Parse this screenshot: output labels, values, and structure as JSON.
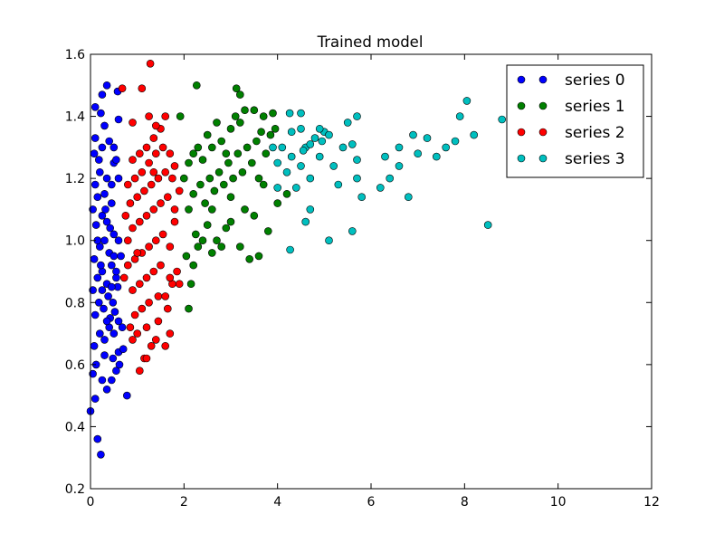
{
  "chart_data": {
    "type": "scatter",
    "title": "Trained model",
    "xlabel": "",
    "ylabel": "",
    "xlim": [
      0,
      12
    ],
    "ylim": [
      0.2,
      1.6
    ],
    "xticks": [
      "0",
      "2",
      "4",
      "6",
      "8",
      "10",
      "12"
    ],
    "yticks": [
      "0.2",
      "0.4",
      "0.6",
      "0.8",
      "1.0",
      "1.2",
      "1.4",
      "1.6"
    ],
    "grid": false,
    "legend_position": "top-right",
    "series": [
      {
        "name": "series 0",
        "color": "#0000ff",
        "points": [
          [
            0.0,
            0.45
          ],
          [
            0.1,
            0.49
          ],
          [
            0.15,
            0.36
          ],
          [
            0.22,
            0.31
          ],
          [
            0.05,
            0.57
          ],
          [
            0.12,
            0.6
          ],
          [
            0.25,
            0.55
          ],
          [
            0.35,
            0.52
          ],
          [
            0.45,
            0.55
          ],
          [
            0.55,
            0.58
          ],
          [
            0.6,
            0.64
          ],
          [
            0.7,
            0.65
          ],
          [
            0.78,
            0.5
          ],
          [
            0.08,
            0.66
          ],
          [
            0.2,
            0.7
          ],
          [
            0.3,
            0.68
          ],
          [
            0.4,
            0.72
          ],
          [
            0.5,
            0.7
          ],
          [
            0.6,
            0.74
          ],
          [
            0.1,
            0.76
          ],
          [
            0.18,
            0.8
          ],
          [
            0.28,
            0.78
          ],
          [
            0.38,
            0.82
          ],
          [
            0.48,
            0.8
          ],
          [
            0.58,
            0.85
          ],
          [
            0.05,
            0.84
          ],
          [
            0.15,
            0.88
          ],
          [
            0.25,
            0.9
          ],
          [
            0.35,
            0.86
          ],
          [
            0.45,
            0.92
          ],
          [
            0.55,
            0.88
          ],
          [
            0.65,
            0.95
          ],
          [
            0.08,
            0.94
          ],
          [
            0.2,
            0.98
          ],
          [
            0.3,
            1.0
          ],
          [
            0.4,
            0.96
          ],
          [
            0.5,
            1.02
          ],
          [
            0.12,
            1.05
          ],
          [
            0.25,
            1.08
          ],
          [
            0.35,
            1.06
          ],
          [
            0.05,
            1.1
          ],
          [
            0.15,
            1.14
          ],
          [
            0.3,
            1.15
          ],
          [
            0.45,
            1.12
          ],
          [
            0.1,
            1.18
          ],
          [
            0.2,
            1.22
          ],
          [
            0.35,
            1.2
          ],
          [
            0.5,
            1.25
          ],
          [
            0.08,
            1.28
          ],
          [
            0.25,
            1.3
          ],
          [
            0.4,
            1.32
          ],
          [
            0.55,
            1.26
          ],
          [
            0.1,
            1.33
          ],
          [
            0.22,
            1.41
          ],
          [
            0.25,
            1.47
          ],
          [
            0.35,
            1.5
          ],
          [
            0.1,
            1.43
          ],
          [
            0.58,
            1.48
          ],
          [
            0.6,
            1.39
          ],
          [
            0.3,
            1.37
          ],
          [
            0.48,
            0.62
          ],
          [
            0.62,
            0.6
          ],
          [
            0.3,
            0.63
          ],
          [
            0.42,
            0.75
          ],
          [
            0.52,
            0.77
          ],
          [
            0.22,
            0.92
          ],
          [
            0.42,
            1.04
          ],
          [
            0.6,
            1.0
          ],
          [
            0.32,
            1.1
          ],
          [
            0.18,
            1.26
          ],
          [
            0.45,
            1.18
          ],
          [
            0.6,
            1.2
          ],
          [
            0.5,
            1.3
          ],
          [
            0.35,
            0.74
          ],
          [
            0.25,
            0.84
          ],
          [
            0.5,
            0.95
          ],
          [
            0.15,
            1.0
          ],
          [
            0.45,
            0.85
          ],
          [
            0.55,
            0.9
          ],
          [
            0.68,
            0.72
          ]
        ]
      },
      {
        "name": "series 1",
        "color": "#008000",
        "points": [
          [
            2.1,
            0.78
          ],
          [
            2.15,
            0.86
          ],
          [
            2.2,
            0.92
          ],
          [
            2.05,
            0.95
          ],
          [
            2.3,
            0.98
          ],
          [
            2.25,
            1.02
          ],
          [
            2.4,
            1.0
          ],
          [
            2.5,
            1.05
          ],
          [
            2.6,
            0.96
          ],
          [
            2.7,
            1.0
          ],
          [
            2.8,
            0.98
          ],
          [
            2.9,
            1.04
          ],
          [
            3.0,
            1.06
          ],
          [
            3.2,
            0.98
          ],
          [
            3.4,
            0.94
          ],
          [
            3.6,
            0.95
          ],
          [
            3.8,
            1.03
          ],
          [
            2.1,
            1.1
          ],
          [
            2.2,
            1.15
          ],
          [
            2.35,
            1.18
          ],
          [
            2.45,
            1.12
          ],
          [
            2.55,
            1.2
          ],
          [
            2.65,
            1.16
          ],
          [
            2.75,
            1.22
          ],
          [
            2.85,
            1.18
          ],
          [
            2.95,
            1.25
          ],
          [
            3.05,
            1.2
          ],
          [
            3.15,
            1.28
          ],
          [
            3.25,
            1.22
          ],
          [
            3.35,
            1.3
          ],
          [
            3.45,
            1.25
          ],
          [
            3.55,
            1.32
          ],
          [
            3.65,
            1.35
          ],
          [
            3.75,
            1.28
          ],
          [
            3.85,
            1.34
          ],
          [
            3.95,
            1.36
          ],
          [
            2.1,
            1.25
          ],
          [
            2.2,
            1.28
          ],
          [
            2.3,
            1.3
          ],
          [
            2.4,
            1.26
          ],
          [
            2.5,
            1.34
          ],
          [
            2.6,
            1.3
          ],
          [
            2.7,
            1.38
          ],
          [
            2.8,
            1.32
          ],
          [
            3.0,
            1.36
          ],
          [
            3.1,
            1.4
          ],
          [
            3.2,
            1.38
          ],
          [
            3.3,
            1.42
          ],
          [
            3.5,
            1.42
          ],
          [
            3.7,
            1.4
          ],
          [
            3.9,
            1.41
          ],
          [
            2.27,
            1.5
          ],
          [
            3.12,
            1.49
          ],
          [
            3.2,
            1.47
          ],
          [
            1.92,
            1.4
          ],
          [
            2.6,
            1.1
          ],
          [
            3.0,
            1.14
          ],
          [
            3.3,
            1.1
          ],
          [
            3.5,
            1.08
          ],
          [
            3.7,
            1.18
          ],
          [
            4.0,
            1.12
          ],
          [
            4.2,
            1.15
          ],
          [
            2.0,
            1.2
          ],
          [
            2.9,
            1.28
          ],
          [
            3.6,
            1.2
          ]
        ]
      },
      {
        "name": "series 2",
        "color": "#ff0000",
        "points": [
          [
            1.05,
            0.58
          ],
          [
            1.15,
            0.62
          ],
          [
            1.3,
            0.66
          ],
          [
            0.9,
            0.68
          ],
          [
            1.0,
            0.7
          ],
          [
            0.85,
            0.72
          ],
          [
            1.2,
            0.72
          ],
          [
            1.4,
            0.68
          ],
          [
            1.6,
            0.66
          ],
          [
            0.95,
            0.76
          ],
          [
            1.1,
            0.78
          ],
          [
            1.25,
            0.8
          ],
          [
            1.45,
            0.82
          ],
          [
            1.65,
            0.78
          ],
          [
            1.75,
            0.86
          ],
          [
            0.9,
            0.84
          ],
          [
            1.05,
            0.86
          ],
          [
            1.2,
            0.88
          ],
          [
            1.35,
            0.9
          ],
          [
            1.5,
            0.92
          ],
          [
            1.7,
            0.88
          ],
          [
            1.85,
            0.9
          ],
          [
            0.8,
            0.92
          ],
          [
            0.95,
            0.94
          ],
          [
            1.1,
            0.96
          ],
          [
            1.25,
            0.98
          ],
          [
            1.4,
            1.0
          ],
          [
            1.55,
            1.02
          ],
          [
            1.7,
            0.98
          ],
          [
            1.9,
            0.86
          ],
          [
            0.8,
            1.0
          ],
          [
            0.9,
            1.04
          ],
          [
            1.05,
            1.06
          ],
          [
            1.2,
            1.08
          ],
          [
            1.35,
            1.1
          ],
          [
            1.5,
            1.12
          ],
          [
            1.65,
            1.14
          ],
          [
            1.8,
            1.1
          ],
          [
            0.75,
            1.08
          ],
          [
            0.85,
            1.12
          ],
          [
            1.0,
            1.14
          ],
          [
            1.15,
            1.16
          ],
          [
            1.3,
            1.18
          ],
          [
            1.45,
            1.2
          ],
          [
            1.6,
            1.22
          ],
          [
            0.8,
            1.18
          ],
          [
            0.95,
            1.2
          ],
          [
            1.1,
            1.22
          ],
          [
            1.25,
            1.25
          ],
          [
            1.4,
            1.28
          ],
          [
            1.55,
            1.3
          ],
          [
            0.9,
            1.26
          ],
          [
            1.05,
            1.28
          ],
          [
            1.2,
            1.3
          ],
          [
            1.35,
            1.33
          ],
          [
            1.5,
            1.36
          ],
          [
            1.7,
            1.28
          ],
          [
            1.8,
            1.24
          ],
          [
            1.28,
            1.57
          ],
          [
            0.68,
            1.49
          ],
          [
            1.1,
            1.49
          ],
          [
            1.25,
            1.4
          ],
          [
            1.4,
            1.37
          ],
          [
            1.6,
            1.4
          ],
          [
            0.9,
            1.38
          ],
          [
            1.6,
            0.82
          ],
          [
            1.7,
            0.7
          ],
          [
            1.8,
            1.06
          ],
          [
            1.9,
            1.16
          ],
          [
            1.75,
            1.2
          ],
          [
            0.72,
            0.88
          ],
          [
            1.2,
            0.62
          ],
          [
            1.45,
            0.74
          ],
          [
            1.35,
            1.22
          ],
          [
            1.0,
            0.96
          ]
        ]
      },
      {
        "name": "series 3",
        "color": "#00bfbf",
        "points": [
          [
            4.27,
            0.97
          ],
          [
            4.6,
            1.06
          ],
          [
            4.7,
            1.1
          ],
          [
            5.1,
            1.0
          ],
          [
            5.6,
            1.03
          ],
          [
            5.7,
            1.2
          ],
          [
            5.8,
            1.14
          ],
          [
            6.2,
            1.17
          ],
          [
            6.4,
            1.2
          ],
          [
            6.6,
            1.24
          ],
          [
            6.8,
            1.14
          ],
          [
            7.0,
            1.28
          ],
          [
            7.4,
            1.27
          ],
          [
            7.8,
            1.32
          ],
          [
            8.2,
            1.34
          ],
          [
            8.5,
            1.05
          ],
          [
            8.8,
            1.39
          ],
          [
            9.2,
            1.3
          ],
          [
            4.0,
            1.25
          ],
          [
            4.2,
            1.22
          ],
          [
            4.3,
            1.27
          ],
          [
            4.5,
            1.24
          ],
          [
            4.6,
            1.3
          ],
          [
            4.7,
            1.2
          ],
          [
            4.8,
            1.33
          ],
          [
            4.9,
            1.27
          ],
          [
            5.0,
            1.35
          ],
          [
            5.2,
            1.24
          ],
          [
            5.4,
            1.3
          ],
          [
            5.6,
            1.31
          ],
          [
            5.7,
            1.26
          ],
          [
            4.1,
            1.3
          ],
          [
            4.3,
            1.35
          ],
          [
            4.5,
            1.36
          ],
          [
            4.7,
            1.31
          ],
          [
            4.9,
            1.36
          ],
          [
            5.1,
            1.34
          ],
          [
            5.5,
            1.38
          ],
          [
            5.7,
            1.4
          ],
          [
            4.26,
            1.41
          ],
          [
            4.5,
            1.41
          ],
          [
            6.3,
            1.27
          ],
          [
            6.6,
            1.3
          ],
          [
            6.9,
            1.34
          ],
          [
            7.2,
            1.33
          ],
          [
            7.6,
            1.3
          ],
          [
            7.9,
            1.4
          ],
          [
            8.05,
            1.45
          ],
          [
            5.3,
            1.18
          ],
          [
            4.0,
            1.17
          ],
          [
            4.4,
            1.17
          ],
          [
            3.9,
            1.3
          ],
          [
            4.55,
            1.29
          ],
          [
            4.95,
            1.32
          ]
        ]
      }
    ]
  }
}
